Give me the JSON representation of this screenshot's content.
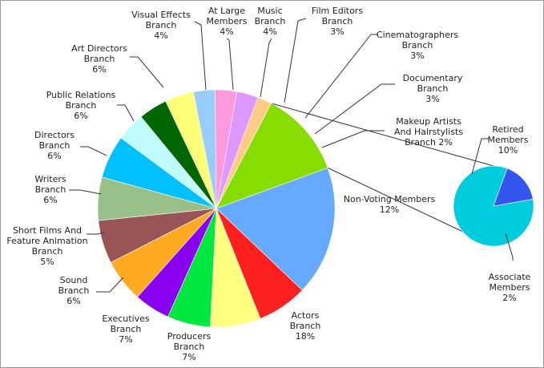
{
  "chart_data": {
    "type": "pie",
    "title": "",
    "main_pie": {
      "slices": [
        {
          "label": "Actors Branch",
          "label_lines": [
            "Actors",
            "Branch"
          ],
          "pct_text": "18%",
          "value": 18,
          "color": "#66aaff"
        },
        {
          "label": "Producers Branch",
          "label_lines": [
            "Producers",
            "Branch"
          ],
          "pct_text": "7%",
          "value": 7,
          "color": "#ff2020"
        },
        {
          "label": "Executives Branch",
          "label_lines": [
            "Executives",
            "Branch"
          ],
          "pct_text": "7%",
          "value": 7,
          "color": "#ffff80"
        },
        {
          "label": "Sound Branch",
          "label_lines": [
            "Sound",
            "Branch"
          ],
          "pct_text": "6%",
          "value": 6,
          "color": "#00e840"
        },
        {
          "label": "Short Films And Feature Animation Branch",
          "label_lines": [
            "Short Films And",
            "Feature Animation",
            "Branch"
          ],
          "pct_text": "5%",
          "value": 5,
          "color": "#8800ee"
        },
        {
          "label": "Writers Branch",
          "label_lines": [
            "Writers",
            "Branch"
          ],
          "pct_text": "6%",
          "value": 6,
          "color": "#ffaa22"
        },
        {
          "label": "Directors Branch",
          "label_lines": [
            "Directors",
            "Branch"
          ],
          "pct_text": "6%",
          "value": 6,
          "color": "#995555"
        },
        {
          "label": "Public Relations Branch",
          "label_lines": [
            "Public Relations",
            "Branch"
          ],
          "pct_text": "6%",
          "value": 6,
          "color": "#99c088"
        },
        {
          "label": "Art Directors Branch",
          "label_lines": [
            "Art Directors",
            "Branch"
          ],
          "pct_text": "6%",
          "value": 6,
          "color": "#00c0ff"
        },
        {
          "label": "Visual Effects Branch",
          "label_lines": [
            "Visual Effects",
            "Branch"
          ],
          "pct_text": "4%",
          "value": 4,
          "color": "#c0fcff"
        },
        {
          "label": "At Large Members",
          "label_lines": [
            "At Large",
            "Members"
          ],
          "pct_text": "4%",
          "value": 4,
          "color": "#006600"
        },
        {
          "label": "Music Branch",
          "label_lines": [
            "Music",
            "Branch"
          ],
          "pct_text": "4%",
          "value": 4,
          "color": "#ffff77"
        },
        {
          "label": "Film Editors Branch",
          "label_lines": [
            "Film Editors",
            "Branch"
          ],
          "pct_text": "3%",
          "value": 3,
          "color": "#99ccff"
        },
        {
          "label": "Cinematographers Branch",
          "label_lines": [
            "Cinematographers",
            "Branch"
          ],
          "pct_text": "3%",
          "value": 3,
          "color": "#ff99dd"
        },
        {
          "label": "Documentary Branch",
          "label_lines": [
            "Documentary",
            "Branch"
          ],
          "pct_text": "3%",
          "value": 3,
          "color": "#dd99ff"
        },
        {
          "label": "Makeup Artists And Hairstylists Branch",
          "label_lines": [
            "Makeup Artists",
            "And Hairstylists",
            "Branch 2%"
          ],
          "pct_text": "",
          "value": 2,
          "color": "#ffcc88"
        },
        {
          "label": "Non-Voting Members",
          "label_lines": [
            "Non-Voting Members"
          ],
          "pct_text": "12%",
          "value": 12,
          "color": "#88dd00"
        }
      ]
    },
    "secondary_pie": {
      "slices": [
        {
          "label": "Retired Members",
          "label_lines": [
            "Retired",
            "Members"
          ],
          "pct_text": "10%",
          "value": 10,
          "color": "#00ccdd"
        },
        {
          "label": "Associate Members",
          "label_lines": [
            "Associate",
            "Members"
          ],
          "pct_text": "2%",
          "value": 2,
          "color": "#3355ee"
        }
      ]
    },
    "legend": "none"
  }
}
